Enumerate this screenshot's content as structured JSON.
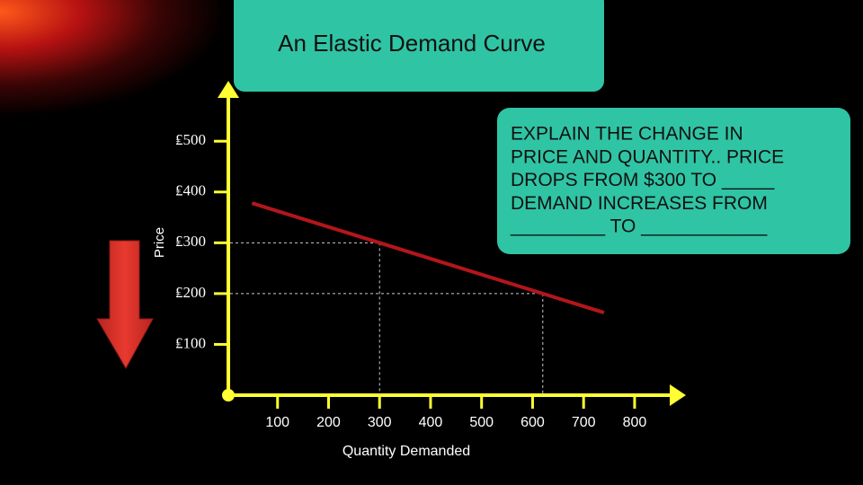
{
  "chart_data": {
    "type": "line",
    "title": "An Elastic Demand Curve",
    "xlabel": "Quantity Demanded",
    "ylabel": "Price",
    "annotation": [
      "EXPLAIN THE CHANGE IN",
      "PRICE AND QUANTITY.. PRICE",
      "DROPS FROM $300 TO _____",
      "DEMAND INCREASES FROM",
      "_________ TO ____________"
    ],
    "x": [
      50,
      300,
      620,
      740
    ],
    "values": [
      378,
      300,
      200,
      162.5
    ],
    "color": "#b3161b",
    "axis_color": "#ffff33",
    "xlim": [
      0,
      890
    ],
    "ylim": [
      0,
      610
    ],
    "xticks": [
      100,
      200,
      300,
      400,
      500,
      600,
      700,
      800
    ],
    "yticks": [
      {
        "value": 100,
        "label": "₤100"
      },
      {
        "value": 200,
        "label": "₤200"
      },
      {
        "value": 300,
        "label": "₤300"
      },
      {
        "value": 400,
        "label": "₤400"
      },
      {
        "value": 500,
        "label": "₤500"
      }
    ]
  }
}
